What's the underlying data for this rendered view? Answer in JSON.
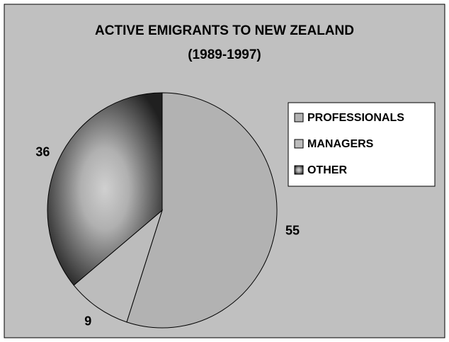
{
  "chart_data": {
    "type": "pie",
    "title": "ACTIVE EMIGRANTS TO NEW ZEALAND",
    "subtitle": "(1989-1997)",
    "categories": [
      "PROFESSIONALS",
      "MANAGERS",
      "OTHER"
    ],
    "values": [
      55,
      9,
      36
    ],
    "colors": [
      "#b2b2b2",
      "#bcbcbc",
      "#202020"
    ],
    "legend": "right"
  }
}
